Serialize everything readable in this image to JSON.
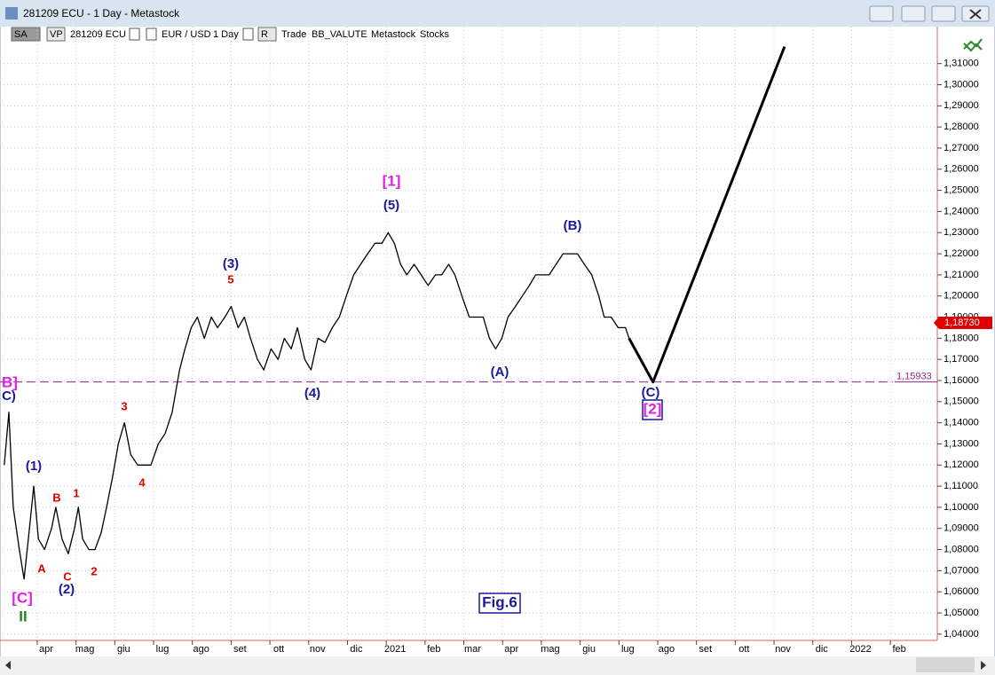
{
  "window": {
    "title": "281209 ECU - 1 Day - Metastock"
  },
  "toolbar": {
    "items": [
      "SA",
      "VP",
      "281209 ECU",
      "EUR / USD",
      "1 Day",
      "R",
      "Trade",
      "BB_VALUTE",
      "Metastock",
      "Stocks"
    ]
  },
  "chart_data": {
    "type": "line",
    "series": [
      {
        "color": "#000000",
        "x": [
          2.15,
          2.27,
          2.38,
          2.54,
          2.66,
          2.8,
          2.91,
          3.03,
          3.19,
          3.37,
          3.48,
          3.64,
          3.8,
          3.96,
          4.06,
          4.17,
          4.33,
          4.49,
          4.65,
          4.79,
          4.95,
          5.09,
          5.25,
          5.41,
          5.59,
          5.75,
          5.93,
          6.12,
          6.3,
          6.48,
          6.67,
          6.81,
          6.97,
          7.13,
          7.31,
          7.49,
          7.65,
          7.84,
          8.0,
          8.18,
          8.34,
          8.5,
          8.68,
          8.84,
          9.03,
          9.21,
          9.37,
          9.55,
          9.71,
          9.9,
          10.06,
          10.24,
          10.42,
          10.61,
          10.79,
          10.97,
          11.16,
          11.34,
          11.52,
          11.71,
          11.89,
          12.05,
          12.21,
          12.37,
          12.53,
          12.72,
          12.9,
          13.08,
          13.27,
          13.43,
          13.61,
          13.77,
          13.95,
          14.14,
          14.32,
          14.5,
          14.66,
          14.82,
          14.98,
          15.14,
          15.33,
          15.51,
          15.69,
          15.85,
          16.01,
          16.2,
          16.38,
          16.56,
          16.75,
          16.93,
          17.11,
          17.3,
          17.48,
          17.62,
          17.8,
          17.98,
          18.17,
          18.26
        ],
        "values": [
          1.12,
          1.145,
          1.1,
          1.08,
          1.066,
          1.09,
          1.11,
          1.085,
          1.08,
          1.09,
          1.1,
          1.085,
          1.078,
          1.09,
          1.1,
          1.085,
          1.08,
          1.08,
          1.088,
          1.1,
          1.115,
          1.13,
          1.14,
          1.125,
          1.12,
          1.12,
          1.12,
          1.13,
          1.135,
          1.145,
          1.165,
          1.175,
          1.185,
          1.19,
          1.18,
          1.19,
          1.185,
          1.19,
          1.195,
          1.185,
          1.19,
          1.18,
          1.17,
          1.165,
          1.175,
          1.17,
          1.18,
          1.175,
          1.185,
          1.17,
          1.165,
          1.18,
          1.178,
          1.185,
          1.19,
          1.2,
          1.21,
          1.215,
          1.22,
          1.225,
          1.225,
          1.23,
          1.225,
          1.215,
          1.21,
          1.215,
          1.21,
          1.205,
          1.21,
          1.21,
          1.215,
          1.21,
          1.2,
          1.19,
          1.19,
          1.19,
          1.18,
          1.175,
          1.18,
          1.19,
          1.195,
          1.2,
          1.205,
          1.21,
          1.21,
          1.21,
          1.215,
          1.22,
          1.22,
          1.22,
          1.215,
          1.21,
          1.2,
          1.19,
          1.19,
          1.185,
          1.185,
          1.18
        ]
      },
      {
        "color": "#000000",
        "x": [
          18.26,
          18.88,
          22.27
        ],
        "values": [
          1.18,
          1.1593,
          1.318
        ]
      }
    ],
    "xlim": [
      2.04,
      26.21
    ],
    "ylim": [
      1.037,
      1.3275
    ],
    "xticks": [
      {
        "value": 3,
        "label": "apr"
      },
      {
        "value": 4,
        "label": "mag"
      },
      {
        "value": 5,
        "label": "giu"
      },
      {
        "value": 6,
        "label": "lug"
      },
      {
        "value": 7,
        "label": "ago"
      },
      {
        "value": 8,
        "label": "set"
      },
      {
        "value": 9,
        "label": "ott"
      },
      {
        "value": 10,
        "label": "nov"
      },
      {
        "value": 11,
        "label": "dic"
      },
      {
        "value": 12,
        "label": "2021"
      },
      {
        "value": 13,
        "label": "feb"
      },
      {
        "value": 14,
        "label": "mar"
      },
      {
        "value": 15,
        "label": "apr"
      },
      {
        "value": 16,
        "label": "mag"
      },
      {
        "value": 17,
        "label": "giu"
      },
      {
        "value": 18,
        "label": "lug"
      },
      {
        "value": 19,
        "label": "ago"
      },
      {
        "value": 20,
        "label": "set"
      },
      {
        "value": 21,
        "label": "ott"
      },
      {
        "value": 22,
        "label": "nov"
      },
      {
        "value": 23,
        "label": "dic"
      },
      {
        "value": 24,
        "label": "2022"
      },
      {
        "value": 25,
        "label": "feb"
      }
    ],
    "yticks": [
      {
        "value": 1.04,
        "label": "1,04000"
      },
      {
        "value": 1.05,
        "label": "1,05000"
      },
      {
        "value": 1.06,
        "label": "1,06000"
      },
      {
        "value": 1.07,
        "label": "1,07000"
      },
      {
        "value": 1.08,
        "label": "1,08000"
      },
      {
        "value": 1.09,
        "label": "1,09000"
      },
      {
        "value": 1.1,
        "label": "1,10000"
      },
      {
        "value": 1.11,
        "label": "1,11000"
      },
      {
        "value": 1.12,
        "label": "1,12000"
      },
      {
        "value": 1.13,
        "label": "1,13000"
      },
      {
        "value": 1.14,
        "label": "1,14000"
      },
      {
        "value": 1.15,
        "label": "1,15000"
      },
      {
        "value": 1.16,
        "label": "1,16000"
      },
      {
        "value": 1.17,
        "label": "1,17000"
      },
      {
        "value": 1.18,
        "label": "1,18000"
      },
      {
        "value": 1.19,
        "label": "1,19000"
      },
      {
        "value": 1.2,
        "label": "1,20000"
      },
      {
        "value": 1.21,
        "label": "1,21000"
      },
      {
        "value": 1.22,
        "label": "1,22000"
      },
      {
        "value": 1.23,
        "label": "1,23000"
      },
      {
        "value": 1.24,
        "label": "1,24000"
      },
      {
        "value": 1.25,
        "label": "1,25000"
      },
      {
        "value": 1.26,
        "label": "1,26000"
      },
      {
        "value": 1.27,
        "label": "1,27000"
      },
      {
        "value": 1.28,
        "label": "1,28000"
      },
      {
        "value": 1.29,
        "label": "1,29000"
      },
      {
        "value": 1.3,
        "label": "1,30000"
      },
      {
        "value": 1.31,
        "label": "1,31000"
      }
    ],
    "grid": true,
    "hline": {
      "value": 1.15933,
      "label": "1,15933",
      "color": "#8b2a8b"
    },
    "last_price": {
      "value": 1.1873,
      "label": "1,18730",
      "color": "#e00000"
    },
    "annotations": [
      {
        "text": "[1]",
        "color": "#e020e0"
      },
      {
        "text": "(5)",
        "color": "#1a1aa0"
      },
      {
        "text": "(3)",
        "color": "#1a1aa0"
      },
      {
        "text": "5",
        "color": "#e00000"
      },
      {
        "text": "(4)",
        "color": "#1a1aa0"
      },
      {
        "text": "(B)",
        "color": "#1a1aa0"
      },
      {
        "text": "(A)",
        "color": "#1a1aa0"
      },
      {
        "text": "(C)",
        "color": "#1a1aa0"
      },
      {
        "text": "[2]",
        "color": "#e020e0"
      },
      {
        "text": "B]",
        "color": "#e020e0"
      },
      {
        "text": "C)",
        "color": "#1a1aa0"
      },
      {
        "text": "(1)",
        "color": "#1a1aa0"
      },
      {
        "text": "B",
        "color": "#e00000"
      },
      {
        "text": "1",
        "color": "#e00000"
      },
      {
        "text": "3",
        "color": "#e00000"
      },
      {
        "text": "4",
        "color": "#e00000"
      },
      {
        "text": "A",
        "color": "#e00000"
      },
      {
        "text": "C",
        "color": "#e00000"
      },
      {
        "text": "2",
        "color": "#e00000"
      },
      {
        "text": "(2)",
        "color": "#1a1aa0"
      },
      {
        "text": "[C]",
        "color": "#e020e0"
      },
      {
        "text": "II",
        "color": "#1a8a1a"
      },
      {
        "text": "Fig.6",
        "color": "#1a1aa0"
      }
    ]
  }
}
